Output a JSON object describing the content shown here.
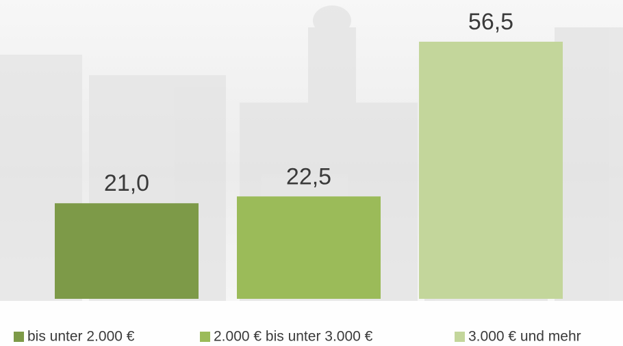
{
  "chart_data": {
    "type": "bar",
    "series": [
      {
        "name": "bis unter 2.000 €",
        "color": "#7d9a48",
        "values": [
          21.0
        ],
        "value_labels": [
          "21,0"
        ]
      },
      {
        "name": "2.000 € bis unter 3.000 €",
        "color": "#9bbb59",
        "values": [
          22.5
        ],
        "value_labels": [
          "22,5"
        ]
      },
      {
        "name": "3.000 € und mehr",
        "color": "#c3d69b",
        "values": [
          56.5
        ],
        "value_labels": [
          "56,5"
        ]
      }
    ]
  }
}
